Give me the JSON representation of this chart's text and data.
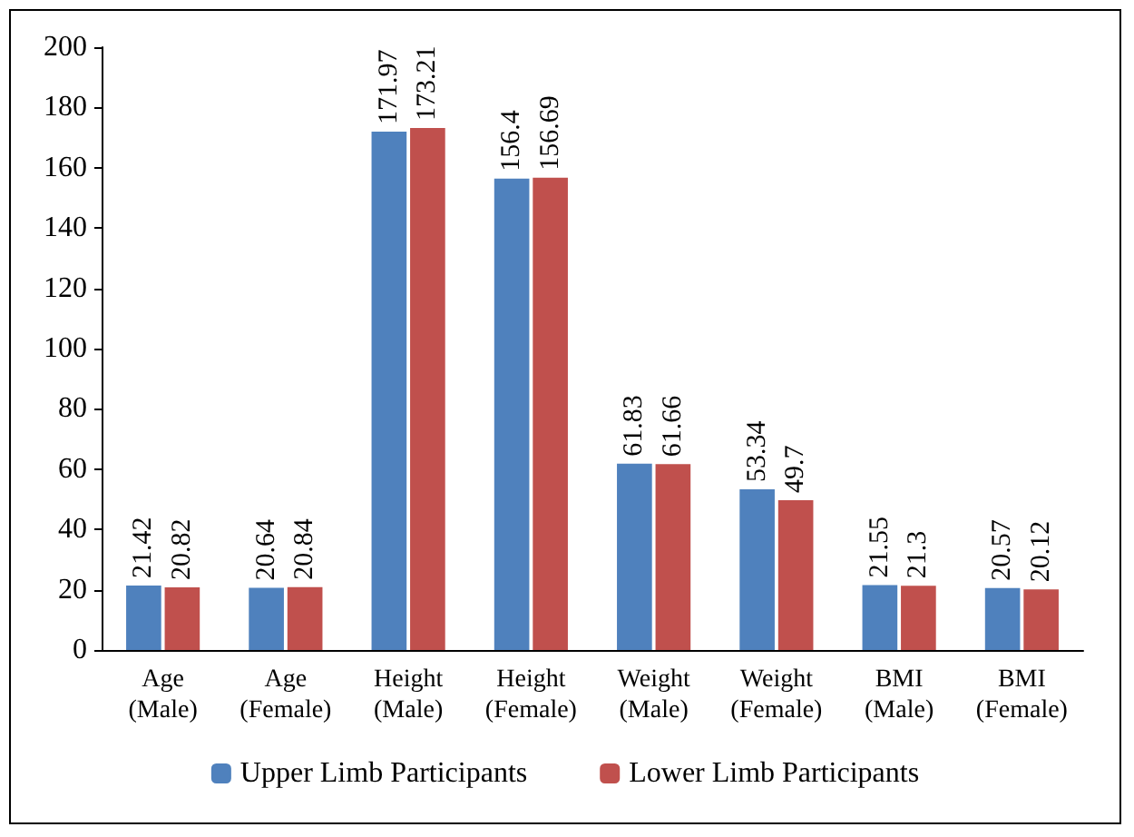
{
  "chart_data": {
    "type": "bar",
    "categories": [
      "Age\n(Male)",
      "Age\n(Female)",
      "Height\n(Male)",
      "Height\n(Female)",
      "Weight\n(Male)",
      "Weight\n(Female)",
      "BMI\n(Male)",
      "BMI\n(Female)"
    ],
    "series": [
      {
        "name": "Upper Limb Participants",
        "color": "#4f81bd",
        "values": [
          21.42,
          20.64,
          171.97,
          156.4,
          61.83,
          53.34,
          21.55,
          20.57
        ]
      },
      {
        "name": "Lower Limb Participants",
        "color": "#c0504d",
        "values": [
          20.82,
          20.84,
          173.21,
          156.69,
          61.66,
          49.7,
          21.3,
          20.12
        ]
      }
    ],
    "ylim": [
      0,
      200
    ],
    "yticks": [
      0,
      20,
      40,
      60,
      80,
      100,
      120,
      140,
      160,
      180,
      200
    ],
    "grid": false,
    "legend": "bottom",
    "data_labels": true
  }
}
